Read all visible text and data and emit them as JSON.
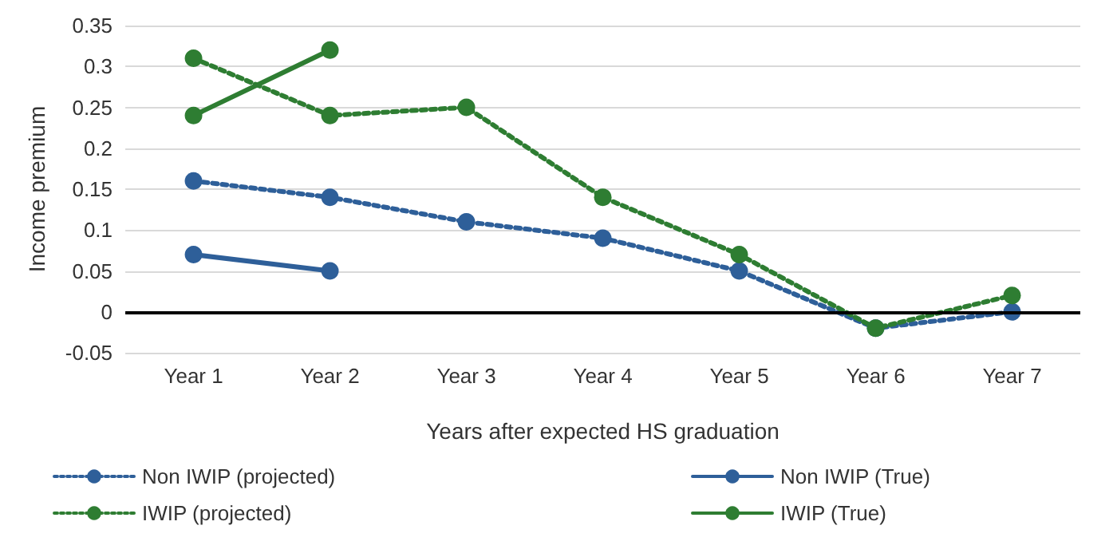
{
  "chart_data": {
    "type": "line",
    "xlabel": "Years after expected HS graduation",
    "ylabel": "Income premium",
    "categories": [
      "Year 1",
      "Year 2",
      "Year 3",
      "Year 4",
      "Year 5",
      "Year 6",
      "Year 7"
    ],
    "series": [
      {
        "name": "Non IWIP (projected)",
        "color": "#2e5f99",
        "line_style": "dotted",
        "values": [
          0.16,
          0.14,
          0.11,
          0.09,
          0.05,
          -0.02,
          0
        ]
      },
      {
        "name": "Non IWIP (True)",
        "color": "#2e5f99",
        "line_style": "solid",
        "values": [
          0.07,
          0.05,
          null,
          null,
          null,
          null,
          null
        ]
      },
      {
        "name": "IWIP (projected)",
        "color": "#2e7d32",
        "line_style": "dotted",
        "values": [
          0.31,
          0.24,
          0.25,
          0.14,
          0.07,
          -0.02,
          0.02
        ]
      },
      {
        "name": "IWIP (True)",
        "color": "#2e7d32",
        "line_style": "solid",
        "values": [
          0.24,
          0.32,
          null,
          null,
          null,
          null,
          null
        ]
      }
    ],
    "ylim": [
      -0.05,
      0.35
    ],
    "yticks": [
      -0.05,
      0,
      0.05,
      0.1,
      0.15,
      0.2,
      0.25,
      0.3,
      0.35
    ],
    "ref_lines": [
      {
        "axis": "y",
        "value": 0,
        "color": "#000000"
      }
    ],
    "grid": "y",
    "legend": "bottom",
    "marker": "circle"
  }
}
